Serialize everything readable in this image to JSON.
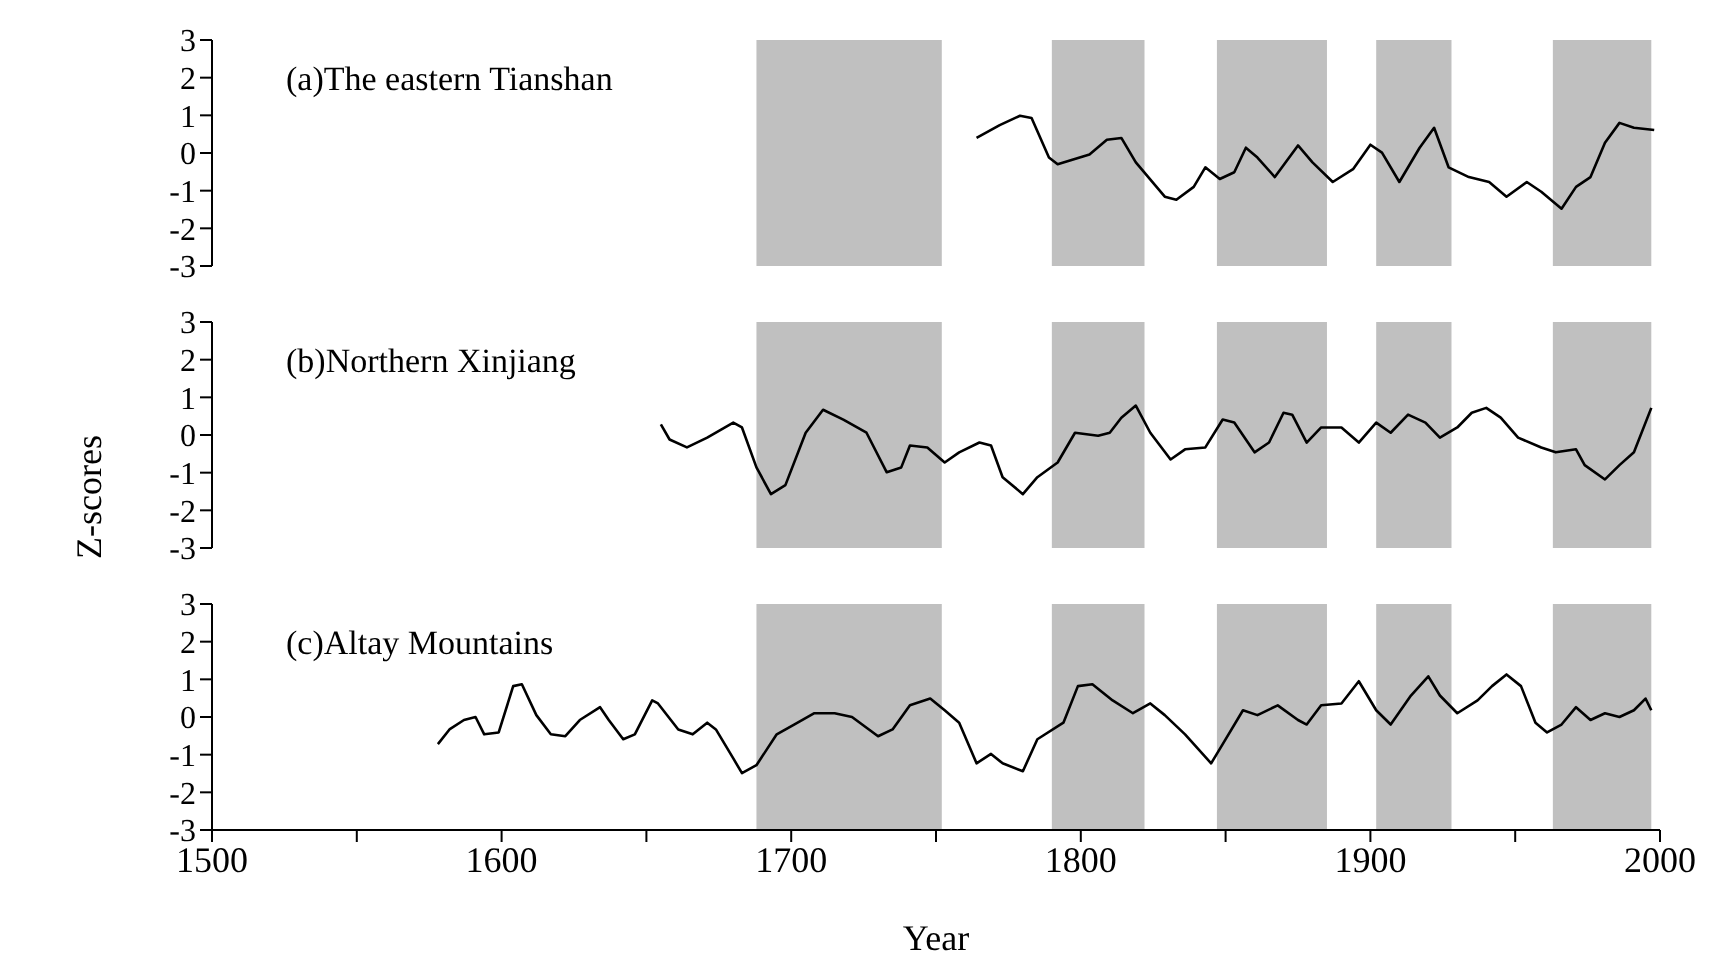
{
  "chart_data": [
    {
      "type": "line",
      "title": "(a)The eastern Tianshan",
      "color": "#000000",
      "xlim": [
        1500,
        2000
      ],
      "ylim": [
        -3,
        3
      ],
      "yticks": [
        -3,
        -2,
        -1,
        0,
        1,
        2,
        3
      ],
      "tick_labels": "y",
      "x": [
        1764,
        1772,
        1779,
        1783,
        1789,
        1792,
        1803,
        1809,
        1814,
        1819,
        1829,
        1833,
        1839,
        1843,
        1848,
        1853,
        1857,
        1861,
        1867,
        1875,
        1880,
        1887,
        1894,
        1900,
        1904,
        1910,
        1917,
        1922,
        1927,
        1934,
        1941,
        1947,
        1954,
        1959,
        1966,
        1971,
        1976,
        1981,
        1986,
        1991,
        1998
      ],
      "values": [
        0.4,
        0.74,
        0.99,
        0.93,
        -0.12,
        -0.3,
        -0.04,
        0.35,
        0.4,
        -0.25,
        -1.16,
        -1.24,
        -0.9,
        -0.38,
        -0.69,
        -0.51,
        0.14,
        -0.12,
        -0.64,
        0.2,
        -0.25,
        -0.77,
        -0.43,
        0.22,
        0.01,
        -0.77,
        0.14,
        0.67,
        -0.38,
        -0.64,
        -0.77,
        -1.16,
        -0.77,
        -1.03,
        -1.48,
        -0.9,
        -0.64,
        0.27,
        0.8,
        0.67,
        0.61
      ],
      "bands": [
        {
          "axis": "x",
          "from": 1688,
          "to": 1752,
          "color": "#c0c0c0"
        },
        {
          "axis": "x",
          "from": 1790,
          "to": 1822,
          "color": "#c0c0c0"
        },
        {
          "axis": "x",
          "from": 1847,
          "to": 1885,
          "color": "#c0c0c0"
        },
        {
          "axis": "x",
          "from": 1902,
          "to": 1928,
          "color": "#c0c0c0"
        },
        {
          "axis": "x",
          "from": 1963,
          "to": 1997,
          "color": "#c0c0c0"
        }
      ]
    },
    {
      "type": "line",
      "title": "(b)Northern Xinjiang",
      "ylabel": "Z-scores",
      "color": "#000000",
      "xlim": [
        1500,
        2000
      ],
      "ylim": [
        -3,
        3
      ],
      "yticks": [
        -3,
        -2,
        -1,
        0,
        1,
        2,
        3
      ],
      "tick_labels": "y",
      "x": [
        1655,
        1658,
        1664,
        1671,
        1680,
        1683,
        1688,
        1693,
        1698,
        1705,
        1711,
        1718,
        1726,
        1733,
        1738,
        1741,
        1747,
        1753,
        1758,
        1765,
        1769,
        1773,
        1780,
        1785,
        1792,
        1798,
        1806,
        1810,
        1814,
        1819,
        1824,
        1831,
        1836,
        1843,
        1849,
        1853,
        1860,
        1865,
        1870,
        1873,
        1878,
        1883,
        1890,
        1896,
        1902,
        1907,
        1913,
        1919,
        1924,
        1930,
        1935,
        1940,
        1945,
        1951,
        1959,
        1964,
        1971,
        1974,
        1981,
        1986,
        1991,
        1997
      ],
      "values": [
        0.28,
        -0.12,
        -0.33,
        -0.07,
        0.33,
        0.2,
        -0.86,
        -1.57,
        -1.33,
        0.06,
        0.67,
        0.41,
        0.06,
        -0.99,
        -0.86,
        -0.28,
        -0.33,
        -0.73,
        -0.46,
        -0.2,
        -0.28,
        -1.12,
        -1.57,
        -1.12,
        -0.73,
        0.06,
        -0.02,
        0.06,
        0.46,
        0.78,
        0.06,
        -0.65,
        -0.38,
        -0.33,
        0.41,
        0.33,
        -0.46,
        -0.2,
        0.59,
        0.54,
        -0.2,
        0.2,
        0.2,
        -0.2,
        0.33,
        0.06,
        0.54,
        0.33,
        -0.07,
        0.2,
        0.59,
        0.72,
        0.46,
        -0.07,
        -0.33,
        -0.46,
        -0.38,
        -0.8,
        -1.18,
        -0.8,
        -0.46,
        0.72
      ],
      "bands": [
        {
          "axis": "x",
          "from": 1688,
          "to": 1752,
          "color": "#c0c0c0"
        },
        {
          "axis": "x",
          "from": 1790,
          "to": 1822,
          "color": "#c0c0c0"
        },
        {
          "axis": "x",
          "from": 1847,
          "to": 1885,
          "color": "#c0c0c0"
        },
        {
          "axis": "x",
          "from": 1902,
          "to": 1928,
          "color": "#c0c0c0"
        },
        {
          "axis": "x",
          "from": 1963,
          "to": 1997,
          "color": "#c0c0c0"
        }
      ]
    },
    {
      "type": "line",
      "title": "(c)Altay Mountains",
      "xlabel": "Year",
      "color": "#000000",
      "xlim": [
        1500,
        2000
      ],
      "ylim": [
        -3,
        3
      ],
      "yticks": [
        -3,
        -2,
        -1,
        0,
        1,
        2,
        3
      ],
      "xticks": [
        1500,
        {
          "value": 1550,
          "label": null
        },
        1600,
        {
          "value": 1650,
          "label": null
        },
        1700,
        {
          "value": 1750,
          "label": null
        },
        1800,
        {
          "value": 1850,
          "label": null
        },
        1900,
        {
          "value": 1950,
          "label": null
        },
        2000
      ],
      "x": [
        1578,
        1582,
        1587,
        1591,
        1594,
        1599,
        1604,
        1607,
        1612,
        1617,
        1622,
        1627,
        1634,
        1637,
        1642,
        1646,
        1652,
        1654,
        1661,
        1666,
        1671,
        1674,
        1680,
        1683,
        1688,
        1695,
        1701,
        1708,
        1715,
        1721,
        1730,
        1735,
        1741,
        1748,
        1753,
        1758,
        1764,
        1769,
        1773,
        1780,
        1785,
        1794,
        1799,
        1804,
        1811,
        1818,
        1824,
        1829,
        1836,
        1845,
        1849,
        1856,
        1861,
        1868,
        1875,
        1878,
        1883,
        1890,
        1896,
        1902,
        1907,
        1914,
        1920,
        1924,
        1930,
        1937,
        1942,
        1947,
        1952,
        1957,
        1961,
        1966,
        1971,
        1976,
        1981,
        1986,
        1991,
        1995,
        1997
      ],
      "values": [
        -0.72,
        -0.33,
        -0.08,
        0,
        -0.46,
        -0.41,
        0.82,
        0.87,
        0.05,
        -0.46,
        -0.51,
        -0.08,
        0.26,
        -0.08,
        -0.59,
        -0.46,
        0.44,
        0.36,
        -0.33,
        -0.46,
        -0.15,
        -0.33,
        -1.1,
        -1.49,
        -1.28,
        -0.46,
        -0.2,
        0.1,
        0.1,
        0,
        -0.51,
        -0.33,
        0.31,
        0.49,
        0.18,
        -0.15,
        -1.23,
        -0.98,
        -1.23,
        -1.44,
        -0.59,
        -0.15,
        0.82,
        0.87,
        0.44,
        0.1,
        0.36,
        0.05,
        -0.46,
        -1.23,
        -0.72,
        0.18,
        0.05,
        0.31,
        -0.08,
        -0.2,
        0.31,
        0.36,
        0.95,
        0.18,
        -0.2,
        0.57,
        1.08,
        0.57,
        0.1,
        0.44,
        0.82,
        1.13,
        0.82,
        -0.15,
        -0.41,
        -0.2,
        0.26,
        -0.08,
        0.1,
        0,
        0.18,
        0.49,
        0.18
      ],
      "bands": [
        {
          "axis": "x",
          "from": 1688,
          "to": 1752,
          "color": "#c0c0c0"
        },
        {
          "axis": "x",
          "from": 1790,
          "to": 1822,
          "color": "#c0c0c0"
        },
        {
          "axis": "x",
          "from": 1847,
          "to": 1885,
          "color": "#c0c0c0"
        },
        {
          "axis": "x",
          "from": 1902,
          "to": 1928,
          "color": "#c0c0c0"
        },
        {
          "axis": "x",
          "from": 1963,
          "to": 1997,
          "color": "#c0c0c0"
        }
      ]
    }
  ]
}
